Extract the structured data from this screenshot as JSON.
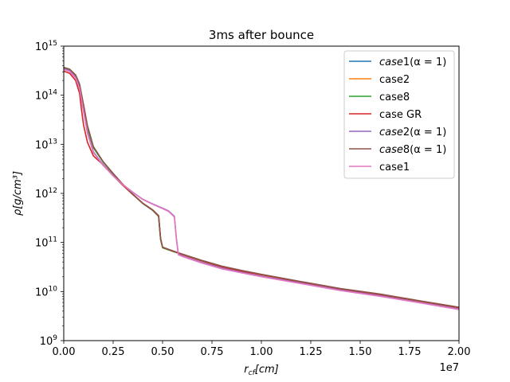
{
  "chart_data": {
    "type": "line",
    "title": "3ms after bounce",
    "xlabel": "r_cf[cm]",
    "ylabel": "ρ[g/cm³]",
    "x_offset_label": "1e7",
    "xlim": [
      0,
      20000000
    ],
    "ylim": [
      1000000000,
      1000000000000000
    ],
    "yscale": "log",
    "grid": false,
    "legend_position": "top-right",
    "x_ticks": [
      0,
      2500000,
      5000000,
      7500000,
      10000000,
      12500000,
      15000000,
      17500000,
      20000000
    ],
    "x_tick_labels": [
      "0.00",
      "0.25",
      "0.50",
      "0.75",
      "1.00",
      "1.25",
      "1.50",
      "1.75",
      "2.00"
    ],
    "y_ticks": [
      1000000000,
      10000000000,
      100000000000,
      1000000000000,
      10000000000000,
      100000000000000,
      1000000000000000
    ],
    "y_tick_exponents": [
      "9",
      "10",
      "11",
      "12",
      "13",
      "14",
      "15"
    ],
    "y_tick_base": "10",
    "series": [
      {
        "name": "case1(α = 1)",
        "name_parts": {
          "italic": "case",
          "rest": "1(α = 1)"
        },
        "color": "#1f77b4",
        "x": [
          0,
          300000,
          600000,
          800000,
          1000000,
          1200000,
          1500000,
          2000000,
          2500000,
          3000000,
          3500000,
          4000000,
          4500000,
          4800000,
          4900000,
          5000000,
          5500000,
          6000000,
          7000000,
          8000000,
          9000000,
          10000000,
          12000000,
          14000000,
          16000000,
          18000000,
          20000000
        ],
        "y": [
          350000000000000,
          320000000000000,
          240000000000000,
          150000000000000,
          50000000000000,
          18000000000000,
          7000000000000,
          3800000000000,
          2300000000000,
          1450000000000,
          950000000000,
          630000000000,
          460000000000,
          350000000000,
          120000000000,
          80000000000,
          67000000000,
          57000000000,
          42000000000,
          32000000000,
          26000000000,
          22000000000,
          15700000000,
          11300000000,
          8700000000,
          6400000000,
          4700000000
        ]
      },
      {
        "name": "case2",
        "color": "#ff7f0e",
        "x": [
          0,
          300000,
          600000,
          800000,
          1000000,
          1200000,
          1500000,
          2000000,
          2500000,
          3000000,
          3500000,
          4000000,
          4500000,
          4800000,
          4900000,
          5000000,
          5500000,
          6000000,
          7000000,
          8000000,
          9000000,
          10000000,
          12000000,
          14000000,
          16000000,
          18000000,
          20000000
        ],
        "y": [
          340000000000000,
          310000000000000,
          230000000000000,
          140000000000000,
          48000000000000,
          17000000000000,
          6800000000000,
          3700000000000,
          2300000000000,
          1450000000000,
          950000000000,
          630000000000,
          460000000000,
          350000000000,
          120000000000,
          80000000000,
          67000000000,
          57000000000,
          42000000000,
          32000000000,
          26000000000,
          22000000000,
          15700000000,
          11300000000,
          8700000000,
          6400000000,
          4700000000
        ]
      },
      {
        "name": "case8",
        "color": "#2ca02c",
        "x": [
          0,
          300000,
          600000,
          800000,
          1000000,
          1200000,
          1500000,
          2000000,
          2500000,
          3000000,
          3500000,
          4000000,
          4500000,
          4800000,
          4900000,
          5000000,
          5500000,
          6000000,
          7000000,
          8000000,
          9000000,
          10000000,
          12000000,
          14000000,
          16000000,
          18000000,
          20000000
        ],
        "y": [
          360000000000000,
          330000000000000,
          250000000000000,
          160000000000000,
          60000000000000,
          22000000000000,
          8500000000000,
          4300000000000,
          2500000000000,
          1500000000000,
          950000000000,
          620000000000,
          450000000000,
          340000000000,
          115000000000,
          78000000000,
          66000000000,
          57000000000,
          42000000000,
          32000000000,
          26000000000,
          22000000000,
          15700000000,
          11300000000,
          8700000000,
          6400000000,
          4700000000
        ]
      },
      {
        "name": "case GR",
        "color": "#d62728",
        "x": [
          0,
          300000,
          600000,
          800000,
          900000,
          1000000,
          1200000,
          1500000,
          2000000,
          2500000,
          3000000,
          3500000,
          4000000,
          4500000,
          4800000,
          4900000,
          5000000,
          5500000,
          6000000,
          7000000,
          8000000,
          9000000,
          10000000,
          12000000,
          14000000,
          16000000,
          18000000,
          20000000
        ],
        "y": [
          310000000000000,
          280000000000000,
          200000000000000,
          110000000000000,
          50000000000000,
          25000000000000,
          11000000000000,
          5800000000000,
          3800000000000,
          2300000000000,
          1450000000000,
          950000000000,
          630000000000,
          460000000000,
          350000000000,
          120000000000,
          80000000000,
          67000000000,
          57000000000,
          42000000000,
          32000000000,
          26000000000,
          22000000000,
          15700000000,
          11300000000,
          8700000000,
          6400000000,
          4700000000
        ]
      },
      {
        "name": "case2(α = 1)",
        "name_parts": {
          "italic": "case",
          "rest": "2(α = 1)"
        },
        "color": "#9467bd",
        "x": [
          0,
          300000,
          600000,
          800000,
          1000000,
          1200000,
          1500000,
          2000000,
          2500000,
          3000000,
          3500000,
          4000000,
          4500000,
          5000000,
          5300000,
          5600000,
          5700000,
          5800000,
          6000000,
          7000000,
          8000000,
          9000000,
          10000000,
          12000000,
          14000000,
          16000000,
          18000000,
          20000000
        ],
        "y": [
          345000000000000,
          315000000000000,
          235000000000000,
          145000000000000,
          49000000000000,
          17500000000000,
          6900000000000,
          3750000000000,
          2300000000000,
          1500000000000,
          1050000000000,
          760000000000,
          610000000000,
          500000000000,
          440000000000,
          340000000000,
          120000000000,
          58000000000,
          53000000000,
          39000000000,
          30000000000,
          24500000000,
          20500000000,
          14800000000,
          10700000000,
          8200000000,
          6000000000,
          4400000000
        ]
      },
      {
        "name": "case8(α = 1)",
        "name_parts": {
          "italic": "case",
          "rest": "8(α = 1)"
        },
        "color": "#8c564b",
        "x": [
          0,
          300000,
          600000,
          800000,
          1000000,
          1200000,
          1500000,
          2000000,
          2500000,
          3000000,
          3500000,
          4000000,
          4500000,
          4800000,
          4900000,
          5000000,
          5500000,
          6000000,
          7000000,
          8000000,
          9000000,
          10000000,
          12000000,
          14000000,
          16000000,
          18000000,
          20000000
        ],
        "y": [
          370000000000000,
          340000000000000,
          260000000000000,
          170000000000000,
          65000000000000,
          24000000000000,
          9000000000000,
          4400000000000,
          2550000000000,
          1520000000000,
          960000000000,
          625000000000,
          455000000000,
          345000000000,
          118000000000,
          80000000000,
          68000000000,
          58000000000,
          43000000000,
          33000000000,
          27000000000,
          22500000000,
          16000000000,
          11500000000,
          8900000000,
          6500000000,
          4800000000
        ]
      },
      {
        "name": "case1",
        "color": "#e377c2",
        "x": [
          0,
          300000,
          600000,
          800000,
          1000000,
          1200000,
          1500000,
          2000000,
          2500000,
          3000000,
          3500000,
          4000000,
          4500000,
          5000000,
          5300000,
          5600000,
          5700000,
          5800000,
          6000000,
          7000000,
          8000000,
          9000000,
          10000000,
          12000000,
          14000000,
          16000000,
          18000000,
          20000000
        ],
        "y": [
          335000000000000,
          305000000000000,
          225000000000000,
          138000000000000,
          47000000000000,
          17000000000000,
          6800000000000,
          3700000000000,
          2280000000000,
          1490000000000,
          1040000000000,
          750000000000,
          600000000000,
          490000000000,
          430000000000,
          330000000000,
          115000000000,
          56000000000,
          52000000000,
          38000000000,
          29000000000,
          24000000000,
          20000000000,
          14500000000,
          10500000000,
          8000000000,
          5900000000,
          4300000000
        ]
      }
    ]
  }
}
